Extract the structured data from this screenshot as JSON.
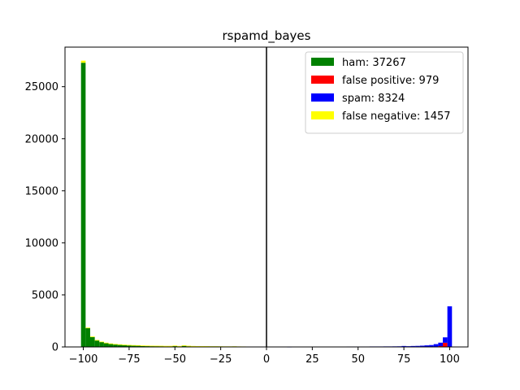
{
  "chart_data": {
    "type": "bar",
    "title": "rspamd_bayes",
    "xlabel": "",
    "ylabel": "",
    "xlim": [
      -110,
      110
    ],
    "ylim": [
      0,
      28800
    ],
    "xticks": [
      -100,
      -75,
      -50,
      -25,
      0,
      25,
      50,
      75,
      100
    ],
    "yticks": [
      0,
      5000,
      10000,
      15000,
      20000,
      25000
    ],
    "vline_x": 0,
    "bin_width": 2.5,
    "legend_position": "top-right",
    "series": [
      {
        "name": "ham: 37267",
        "color": "#008000",
        "bars": [
          {
            "x": -100,
            "y": 27300
          },
          {
            "x": -97.5,
            "y": 1800
          },
          {
            "x": -95,
            "y": 950
          },
          {
            "x": -92.5,
            "y": 620
          },
          {
            "x": -90,
            "y": 470
          },
          {
            "x": -87.5,
            "y": 370
          },
          {
            "x": -85,
            "y": 300
          },
          {
            "x": -82.5,
            "y": 250
          },
          {
            "x": -80,
            "y": 220
          },
          {
            "x": -77.5,
            "y": 190
          },
          {
            "x": -75,
            "y": 170
          },
          {
            "x": -72.5,
            "y": 150
          },
          {
            "x": -70,
            "y": 140
          },
          {
            "x": -67.5,
            "y": 120
          },
          {
            "x": -65,
            "y": 110
          },
          {
            "x": -62.5,
            "y": 100
          },
          {
            "x": -60,
            "y": 95
          },
          {
            "x": -57.5,
            "y": 90
          },
          {
            "x": -55,
            "y": 80
          },
          {
            "x": -52.5,
            "y": 80
          },
          {
            "x": -50,
            "y": 110
          },
          {
            "x": -47.5,
            "y": 70
          },
          {
            "x": -45,
            "y": 130
          },
          {
            "x": -42.5,
            "y": 90
          },
          {
            "x": -40,
            "y": 70
          },
          {
            "x": -37.5,
            "y": 60
          },
          {
            "x": -35,
            "y": 60
          },
          {
            "x": -32.5,
            "y": 55
          },
          {
            "x": -30,
            "y": 50
          },
          {
            "x": -27.5,
            "y": 50
          },
          {
            "x": -25,
            "y": 45
          },
          {
            "x": -22.5,
            "y": 40
          },
          {
            "x": -20,
            "y": 40
          },
          {
            "x": -17.5,
            "y": 45
          },
          {
            "x": -15,
            "y": 35
          },
          {
            "x": -12.5,
            "y": 30
          }
        ]
      },
      {
        "name": "false positive: 979",
        "color": "#ff0000",
        "bars": [
          {
            "x": 97.5,
            "y": 400
          },
          {
            "x": 95,
            "y": 80
          },
          {
            "x": 92.5,
            "y": 40
          }
        ]
      },
      {
        "name": "spam: 8324",
        "color": "#0000ff",
        "bars": [
          {
            "x": 12.5,
            "y": 20
          },
          {
            "x": 15,
            "y": 25
          },
          {
            "x": 17.5,
            "y": 25
          },
          {
            "x": 20,
            "y": 30
          },
          {
            "x": 22.5,
            "y": 30
          },
          {
            "x": 25,
            "y": 30
          },
          {
            "x": 27.5,
            "y": 30
          },
          {
            "x": 30,
            "y": 30
          },
          {
            "x": 32.5,
            "y": 30
          },
          {
            "x": 35,
            "y": 35
          },
          {
            "x": 37.5,
            "y": 35
          },
          {
            "x": 40,
            "y": 35
          },
          {
            "x": 42.5,
            "y": 35
          },
          {
            "x": 45,
            "y": 40
          },
          {
            "x": 47.5,
            "y": 40
          },
          {
            "x": 50,
            "y": 40
          },
          {
            "x": 52.5,
            "y": 40
          },
          {
            "x": 55,
            "y": 40
          },
          {
            "x": 57.5,
            "y": 45
          },
          {
            "x": 60,
            "y": 45
          },
          {
            "x": 62.5,
            "y": 45
          },
          {
            "x": 65,
            "y": 50
          },
          {
            "x": 67.5,
            "y": 50
          },
          {
            "x": 70,
            "y": 55
          },
          {
            "x": 72.5,
            "y": 60
          },
          {
            "x": 75,
            "y": 90
          },
          {
            "x": 77.5,
            "y": 70
          },
          {
            "x": 80,
            "y": 90
          },
          {
            "x": 82.5,
            "y": 100
          },
          {
            "x": 85,
            "y": 120
          },
          {
            "x": 87.5,
            "y": 150
          },
          {
            "x": 90,
            "y": 180
          },
          {
            "x": 92.5,
            "y": 230
          },
          {
            "x": 95,
            "y": 330
          },
          {
            "x": 97.5,
            "y": 520
          },
          {
            "x": 100,
            "y": 3900
          }
        ]
      },
      {
        "name": "false negative: 1457",
        "color": "#ffff00",
        "bars": [
          {
            "x": -100,
            "y": 200
          },
          {
            "x": -97.5,
            "y": 60
          },
          {
            "x": -95,
            "y": 60
          },
          {
            "x": -92.5,
            "y": 50
          },
          {
            "x": -90,
            "y": 45
          },
          {
            "x": -87.5,
            "y": 40
          },
          {
            "x": -85,
            "y": 35
          },
          {
            "x": -82.5,
            "y": 35
          },
          {
            "x": -80,
            "y": 30
          },
          {
            "x": -77.5,
            "y": 30
          },
          {
            "x": -75,
            "y": 25
          },
          {
            "x": -72.5,
            "y": 25
          },
          {
            "x": -70,
            "y": 25
          },
          {
            "x": -67.5,
            "y": 20
          },
          {
            "x": -65,
            "y": 20
          },
          {
            "x": -62.5,
            "y": 20
          },
          {
            "x": -60,
            "y": 20
          },
          {
            "x": -57.5,
            "y": 20
          },
          {
            "x": -55,
            "y": 20
          },
          {
            "x": -52.5,
            "y": 20
          },
          {
            "x": -50,
            "y": 20
          },
          {
            "x": -47.5,
            "y": 20
          },
          {
            "x": -45,
            "y": 20
          },
          {
            "x": -42.5,
            "y": 20
          },
          {
            "x": -40,
            "y": 20
          },
          {
            "x": -37.5,
            "y": 20
          },
          {
            "x": -35,
            "y": 20
          },
          {
            "x": -32.5,
            "y": 20
          },
          {
            "x": -30,
            "y": 15
          },
          {
            "x": -27.5,
            "y": 15
          },
          {
            "x": -25,
            "y": 15
          },
          {
            "x": -22.5,
            "y": 15
          },
          {
            "x": -20,
            "y": 15
          },
          {
            "x": -17.5,
            "y": 15
          },
          {
            "x": -15,
            "y": 15
          },
          {
            "x": -12.5,
            "y": 15
          }
        ]
      }
    ]
  }
}
